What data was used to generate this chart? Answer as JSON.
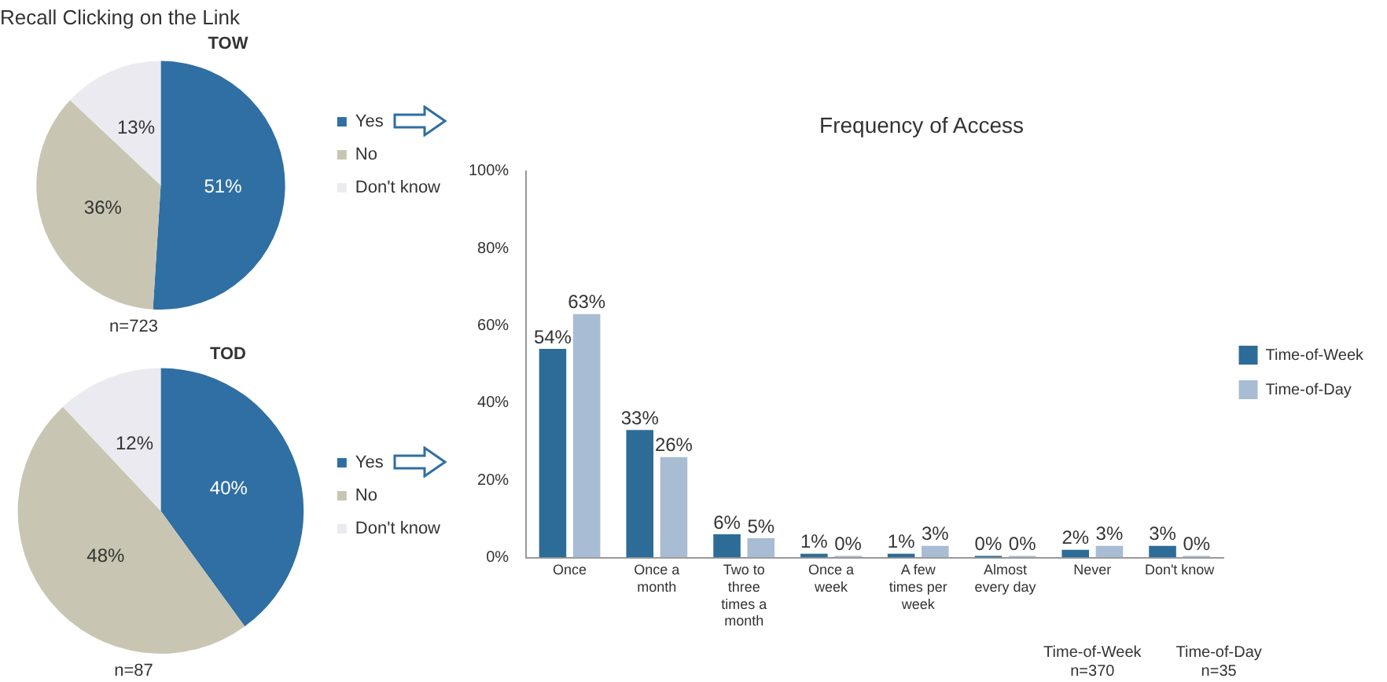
{
  "chart_data": [
    {
      "type": "pie",
      "title": "Recall Clicking on the Link",
      "subtitle": "TOW",
      "categories": [
        "Yes",
        "No",
        "Don't know"
      ],
      "values": [
        51,
        36,
        13
      ],
      "colors": [
        "#2f6fa3",
        "#c8c6b2",
        "#ebeaf0"
      ],
      "value_labels": [
        "51%",
        "36%",
        "13%"
      ],
      "legend": "right",
      "annotations": [
        "n=723"
      ]
    },
    {
      "type": "pie",
      "title": "TOD",
      "categories": [
        "Yes",
        "No",
        "Don't know"
      ],
      "values": [
        40,
        48,
        12
      ],
      "colors": [
        "#2f6fa3",
        "#c8c6b2",
        "#ebeaf0"
      ],
      "value_labels": [
        "40%",
        "48%",
        "12%"
      ],
      "legend": "right",
      "annotations": [
        "n=87"
      ]
    },
    {
      "type": "bar",
      "title": "Frequency of Access",
      "categories": [
        "Once",
        "Once a month",
        "Two to three times a month",
        "Once a week",
        "A few times per week",
        "Almost every day",
        "Never",
        "Don't know"
      ],
      "series": [
        {
          "name": "Time-of-Week",
          "color": "#2e6c98",
          "values": [
            54,
            33,
            6,
            1,
            1,
            0,
            2,
            3
          ],
          "value_labels": [
            "54%",
            "33%",
            "6%",
            "1%",
            "1%",
            "0%",
            "2%",
            "3%"
          ]
        },
        {
          "name": "Time-of-Day",
          "color": "#a8bcd4",
          "values": [
            63,
            26,
            5,
            0,
            3,
            0,
            3,
            0
          ],
          "value_labels": [
            "63%",
            "26%",
            "5%",
            "0%",
            "3%",
            "0%",
            "3%",
            "0%"
          ]
        }
      ],
      "ylim": [
        0,
        100
      ],
      "yticks": [
        {
          "value": 0,
          "label": "0%"
        },
        {
          "value": 20,
          "label": "20%"
        },
        {
          "value": 40,
          "label": "40%"
        },
        {
          "value": 60,
          "label": "60%"
        },
        {
          "value": 80,
          "label": "80%"
        },
        {
          "value": 100,
          "label": "100%"
        }
      ],
      "grid": false,
      "legend": "right",
      "annotations": [
        "Time-of-Week n=370",
        "Time-of-Day n=35"
      ]
    }
  ]
}
